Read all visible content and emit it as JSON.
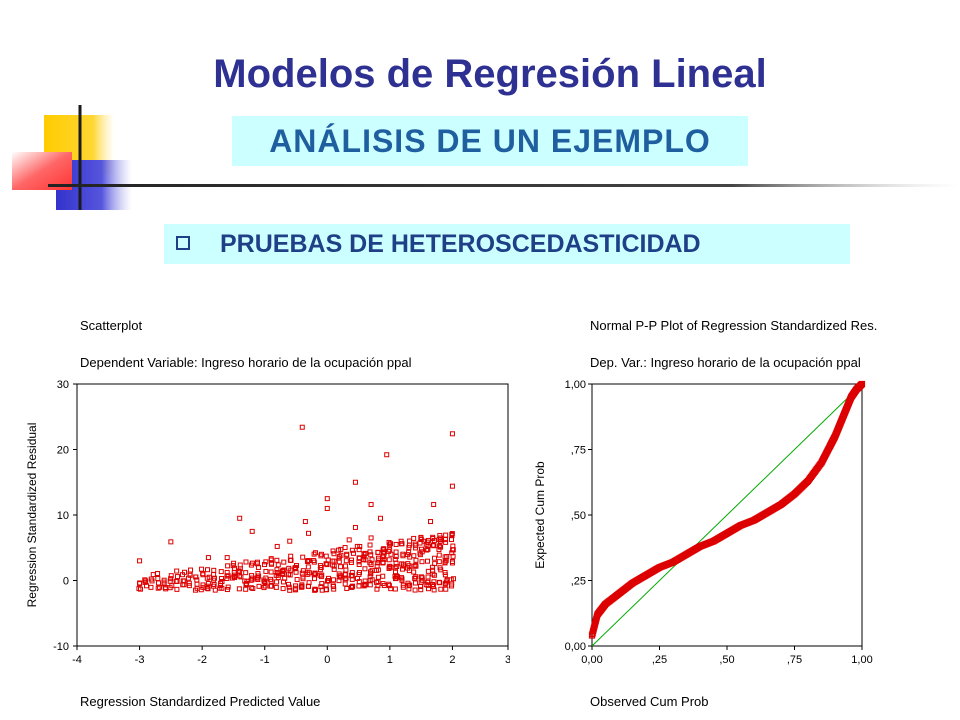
{
  "slide": {
    "title": "Modelos de Regresión Lineal",
    "subtitle": "ANÁLISIS DE UN EJEMPLO",
    "section": "PRUEBAS DE HETEROSCEDASTICIDAD",
    "colors": {
      "title": "#2e3192",
      "subtitle_bg": "#ccffff",
      "accent_yellow": "#ffcc00",
      "accent_red": "#ff3333",
      "accent_blue": "#3333cc"
    },
    "bullet_icon": "checkbox-square-icon"
  },
  "chart_data": [
    {
      "type": "scatter",
      "title": "Scatterplot",
      "subtitle": "Dependent Variable: Ingreso horario de la ocupación ppal",
      "xlabel": "Regression Standardized Predicted Value",
      "ylabel": "Regression Standardized Residual",
      "xlim": [
        -4,
        3
      ],
      "ylim": [
        -10,
        30
      ],
      "xticks": [
        "-4",
        "-3",
        "-2",
        "-1",
        "0",
        "1",
        "2",
        "3"
      ],
      "yticks": [
        "30",
        "20",
        "10",
        "0",
        "-10"
      ],
      "marker": "hollow-square",
      "color": "#dd0000",
      "grid": false,
      "outliers": [
        [
          -3,
          3.0
        ],
        [
          -2.5,
          5.9
        ],
        [
          -1.4,
          9.5
        ],
        [
          -1.2,
          7.5
        ],
        [
          -0.8,
          5.2
        ],
        [
          -0.4,
          23.4
        ],
        [
          -0.35,
          9.0
        ],
        [
          -0.3,
          7.2
        ],
        [
          0.0,
          12.5
        ],
        [
          0.0,
          11.0
        ],
        [
          0.45,
          15.0
        ],
        [
          0.45,
          8.1
        ],
        [
          0.7,
          11.6
        ],
        [
          0.7,
          6.5
        ],
        [
          0.85,
          9.5
        ],
        [
          0.95,
          19.2
        ],
        [
          1.65,
          9.0
        ],
        [
          1.7,
          11.6
        ],
        [
          2.0,
          22.4
        ],
        [
          2.0,
          14.4
        ],
        [
          1.55,
          6.0
        ],
        [
          1.1,
          5.5
        ],
        [
          0.35,
          6.2
        ],
        [
          -0.6,
          6.0
        ],
        [
          -1.6,
          3.5
        ],
        [
          -1.9,
          3.5
        ]
      ]
    },
    {
      "type": "line",
      "title": "Normal P-P Plot of Regression Standardized Res.",
      "subtitle": "Dep. Var.: Ingreso horario de la ocupación ppal",
      "xlabel": "Observed Cum Prob",
      "ylabel": "Expected Cum Prob",
      "xlim": [
        0,
        1
      ],
      "ylim": [
        0,
        1
      ],
      "xticks": [
        "0,00",
        ",25",
        ",50",
        ",75",
        "1,00"
      ],
      "yticks": [
        "1,00",
        ",75",
        ",50",
        ",25",
        "0,00"
      ],
      "reference_line_color": "#00aa00",
      "points_color": "#dd0000",
      "grid": false,
      "x": [
        0.0,
        0.02,
        0.05,
        0.1,
        0.15,
        0.2,
        0.25,
        0.3,
        0.35,
        0.4,
        0.45,
        0.5,
        0.55,
        0.6,
        0.65,
        0.7,
        0.75,
        0.8,
        0.85,
        0.88,
        0.9,
        0.92,
        0.94,
        0.96,
        0.98,
        1.0
      ],
      "y": [
        0.04,
        0.12,
        0.16,
        0.2,
        0.24,
        0.27,
        0.3,
        0.32,
        0.35,
        0.38,
        0.4,
        0.43,
        0.46,
        0.48,
        0.51,
        0.54,
        0.58,
        0.63,
        0.7,
        0.76,
        0.8,
        0.85,
        0.9,
        0.95,
        0.98,
        1.0
      ]
    }
  ]
}
